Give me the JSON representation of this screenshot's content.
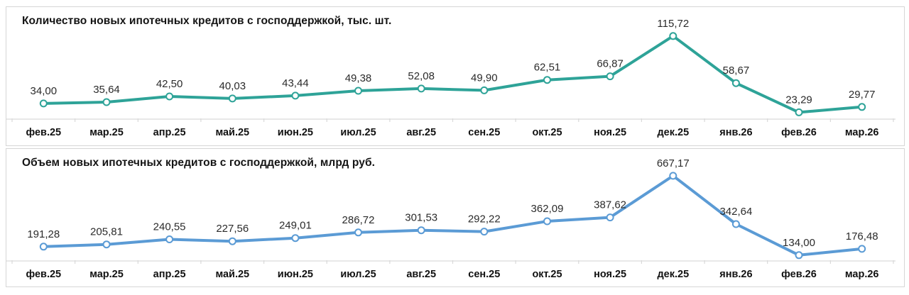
{
  "chart_data": [
    {
      "type": "line",
      "title": "Количество новых ипотечных кредитов с господдержкой, тыс. шт.",
      "categories": [
        "фев.25",
        "мар.25",
        "апр.25",
        "май.25",
        "июн.25",
        "июл.25",
        "авг.25",
        "сен.25",
        "окт.25",
        "ноя.25",
        "дек.25",
        "янв.26",
        "фев.26",
        "мар.26"
      ],
      "values": [
        34.0,
        35.64,
        42.5,
        40.03,
        43.44,
        49.38,
        52.08,
        49.9,
        62.51,
        66.87,
        115.72,
        58.67,
        23.29,
        29.77
      ],
      "value_labels": [
        "34,00",
        "35,64",
        "42,50",
        "40,03",
        "43,44",
        "49,38",
        "52,08",
        "49,90",
        "62,51",
        "66,87",
        "115,72",
        "58,67",
        "23,29",
        "29,77"
      ],
      "xlabel": "",
      "ylabel": "",
      "ylim": [
        15,
        125
      ],
      "grid": false,
      "legend_position": "none",
      "line_color": "#2EA398",
      "marker_fill": "#ffffff",
      "axis_color": "#d9d9d9",
      "label_color": "#2b2b2b",
      "xtick_color": "#111111"
    },
    {
      "type": "line",
      "title": "Объем новых ипотечных кредитов с господдержкой, млрд руб.",
      "categories": [
        "фев.25",
        "мар.25",
        "апр.25",
        "май.25",
        "июн.25",
        "июл.25",
        "авг.25",
        "сен.25",
        "окт.25",
        "ноя.25",
        "дек.25",
        "янв.26",
        "фев.26",
        "мар.26"
      ],
      "values": [
        191.28,
        205.81,
        240.55,
        227.56,
        249.01,
        286.72,
        301.53,
        292.22,
        362.09,
        387.62,
        667.17,
        342.64,
        134.0,
        176.48
      ],
      "value_labels": [
        "191,28",
        "205,81",
        "240,55",
        "227,56",
        "249,01",
        "286,72",
        "301,53",
        "292,22",
        "362,09",
        "387,62",
        "667,17",
        "342,64",
        "134,00",
        "176,48"
      ],
      "xlabel": "",
      "ylabel": "",
      "ylim": [
        95,
        705
      ],
      "grid": false,
      "legend_position": "none",
      "line_color": "#5B9BD5",
      "marker_fill": "#ffffff",
      "axis_color": "#d9d9d9",
      "label_color": "#2b2b2b",
      "xtick_color": "#111111"
    }
  ]
}
